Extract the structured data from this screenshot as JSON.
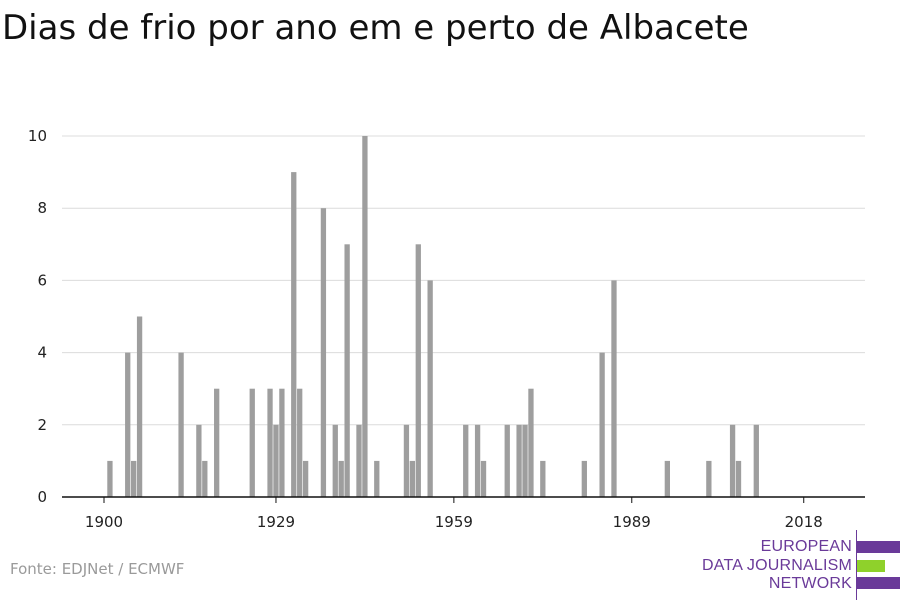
{
  "chart_data": {
    "type": "bar",
    "title": "Dias de frio por ano em e perto de Albacete",
    "xlabel": "",
    "ylabel": "",
    "xlim": [
      1900,
      2018
    ],
    "ylim": [
      0,
      10
    ],
    "x_ticks": [
      1900,
      1929,
      1959,
      1989,
      2018
    ],
    "y_ticks": [
      0,
      2,
      4,
      6,
      8,
      10
    ],
    "grid": true,
    "bar_color": "#9e9e9e",
    "data": [
      {
        "x": 1901,
        "y": 1
      },
      {
        "x": 1904,
        "y": 4
      },
      {
        "x": 1905,
        "y": 1
      },
      {
        "x": 1906,
        "y": 5
      },
      {
        "x": 1913,
        "y": 4
      },
      {
        "x": 1916,
        "y": 2
      },
      {
        "x": 1917,
        "y": 1
      },
      {
        "x": 1919,
        "y": 3
      },
      {
        "x": 1925,
        "y": 3
      },
      {
        "x": 1928,
        "y": 3
      },
      {
        "x": 1929,
        "y": 2
      },
      {
        "x": 1930,
        "y": 3
      },
      {
        "x": 1932,
        "y": 9
      },
      {
        "x": 1933,
        "y": 3
      },
      {
        "x": 1934,
        "y": 1
      },
      {
        "x": 1937,
        "y": 8
      },
      {
        "x": 1939,
        "y": 2
      },
      {
        "x": 1940,
        "y": 1
      },
      {
        "x": 1941,
        "y": 7
      },
      {
        "x": 1943,
        "y": 2
      },
      {
        "x": 1944,
        "y": 10
      },
      {
        "x": 1946,
        "y": 1
      },
      {
        "x": 1951,
        "y": 2
      },
      {
        "x": 1952,
        "y": 1
      },
      {
        "x": 1953,
        "y": 7
      },
      {
        "x": 1955,
        "y": 6
      },
      {
        "x": 1961,
        "y": 2
      },
      {
        "x": 1963,
        "y": 2
      },
      {
        "x": 1964,
        "y": 1
      },
      {
        "x": 1968,
        "y": 2
      },
      {
        "x": 1970,
        "y": 2
      },
      {
        "x": 1971,
        "y": 2
      },
      {
        "x": 1972,
        "y": 3
      },
      {
        "x": 1974,
        "y": 1
      },
      {
        "x": 1981,
        "y": 1
      },
      {
        "x": 1984,
        "y": 4
      },
      {
        "x": 1986,
        "y": 6
      },
      {
        "x": 1995,
        "y": 1
      },
      {
        "x": 2002,
        "y": 1
      },
      {
        "x": 2006,
        "y": 2
      },
      {
        "x": 2007,
        "y": 1
      },
      {
        "x": 2010,
        "y": 2
      }
    ]
  },
  "source": "Fonte: EDJNet / ECMWF",
  "logo": {
    "lines": [
      "EUROPEAN",
      "DATA JOURNALISM",
      "NETWORK"
    ],
    "purple": "#6a3a99",
    "green": "#8fd12b"
  }
}
